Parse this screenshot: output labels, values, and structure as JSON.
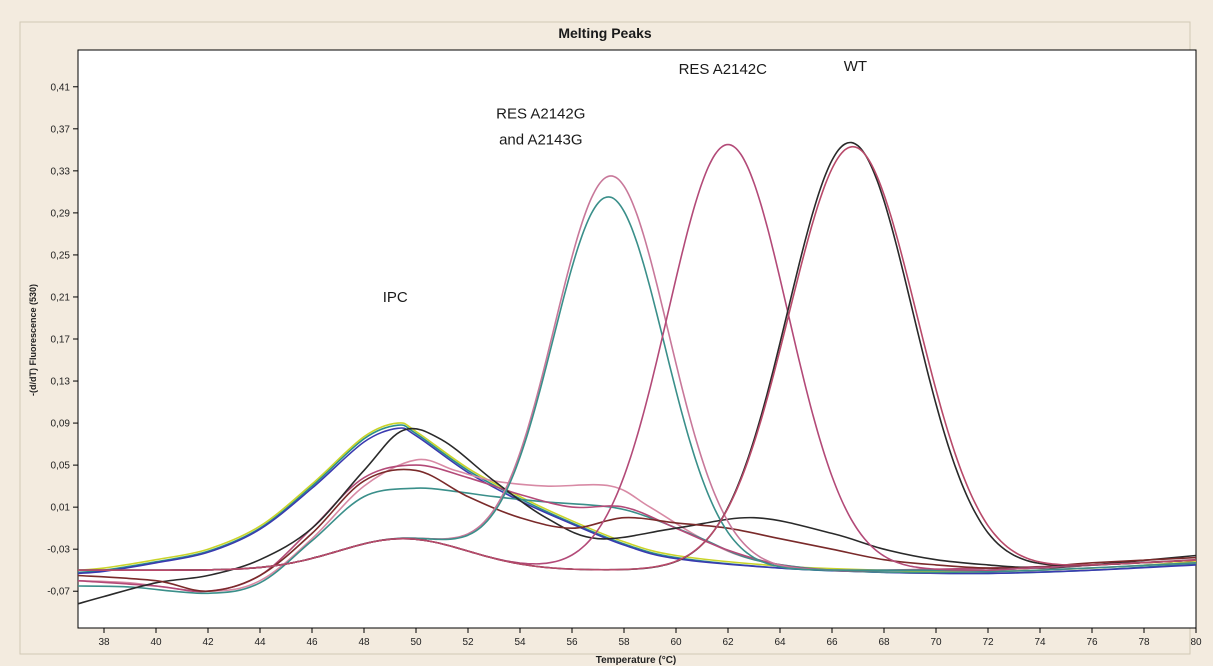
{
  "chart_data": {
    "type": "line",
    "title": "Melting Peaks",
    "xlabel": "Temperature (°C)",
    "ylabel": "-(d/dT) Fluorescence (530)",
    "xlim": [
      37,
      80
    ],
    "ylim": [
      -0.105,
      0.445
    ],
    "xticks": [
      38,
      40,
      42,
      44,
      46,
      48,
      50,
      52,
      54,
      56,
      58,
      60,
      62,
      64,
      66,
      68,
      70,
      72,
      74,
      76,
      78,
      80
    ],
    "yticks": [
      -0.07,
      -0.03,
      0.01,
      0.05,
      0.09,
      0.13,
      0.17,
      0.21,
      0.25,
      0.29,
      0.33,
      0.37,
      0.41
    ],
    "ytick_labels": [
      "-0,07",
      "-0,03",
      "0,01",
      "0,05",
      "0,09",
      "0,13",
      "0,17",
      "0,21",
      "0,25",
      "0,29",
      "0,33",
      "0,37",
      "0,41"
    ],
    "grid": false,
    "annotations": [
      {
        "text": "IPC",
        "x": 49.2,
        "y": 0.205
      },
      {
        "text": "RES A2142G",
        "x": 54.8,
        "y": 0.38
      },
      {
        "text": "and A2143G",
        "x": 54.8,
        "y": 0.355
      },
      {
        "text": "RES A2142C",
        "x": 61.8,
        "y": 0.422
      },
      {
        "text": "WT",
        "x": 66.9,
        "y": 0.425
      }
    ],
    "series": [
      {
        "color": "#2a8f8a",
        "x": [
          37,
          38,
          40,
          42,
          44,
          46,
          48,
          49.3,
          50,
          52,
          54,
          56,
          58,
          60,
          64,
          68,
          72,
          76,
          80
        ],
        "y": [
          -0.052,
          -0.05,
          -0.042,
          -0.032,
          -0.01,
          0.03,
          0.075,
          0.088,
          0.08,
          0.045,
          0.018,
          -0.005,
          -0.025,
          -0.038,
          -0.048,
          -0.052,
          -0.053,
          -0.05,
          -0.044
        ]
      },
      {
        "color": "#c9d42a",
        "x": [
          37,
          38,
          40,
          42,
          44,
          46,
          48,
          49.3,
          50,
          52,
          54,
          56,
          58,
          60,
          64,
          68,
          72,
          76,
          80
        ],
        "y": [
          -0.05,
          -0.048,
          -0.04,
          -0.03,
          -0.008,
          0.032,
          0.077,
          0.09,
          0.082,
          0.047,
          0.02,
          -0.003,
          -0.023,
          -0.036,
          -0.046,
          -0.05,
          -0.051,
          -0.048,
          -0.042
        ]
      },
      {
        "color": "#3a3ab0",
        "x": [
          37,
          38,
          40,
          42,
          44,
          46,
          48,
          49.3,
          50,
          52,
          54,
          56,
          58,
          60,
          64,
          68,
          72,
          76,
          80
        ],
        "y": [
          -0.053,
          -0.051,
          -0.043,
          -0.033,
          -0.011,
          0.028,
          0.072,
          0.085,
          0.078,
          0.043,
          0.016,
          -0.006,
          -0.026,
          -0.039,
          -0.048,
          -0.052,
          -0.053,
          -0.05,
          -0.045
        ]
      },
      {
        "color": "#d88aa5",
        "x": [
          37,
          39,
          42,
          44,
          46,
          48,
          50,
          51.5,
          53,
          55,
          57.5,
          59,
          61,
          63,
          66,
          70,
          74,
          80
        ],
        "y": [
          -0.06,
          -0.062,
          -0.07,
          -0.06,
          -0.02,
          0.03,
          0.055,
          0.045,
          0.035,
          0.03,
          0.03,
          0.01,
          -0.02,
          -0.04,
          -0.05,
          -0.052,
          -0.05,
          -0.043
        ]
      },
      {
        "color": "#3a8f8a",
        "x": [
          37,
          39,
          42,
          44,
          46,
          48,
          50,
          51.5,
          53,
          55,
          57.5,
          59,
          61,
          63,
          66,
          70,
          74,
          80
        ],
        "y": [
          -0.065,
          -0.066,
          -0.072,
          -0.062,
          -0.022,
          0.02,
          0.028,
          0.025,
          0.02,
          0.015,
          0.01,
          0,
          -0.02,
          -0.04,
          -0.05,
          -0.052,
          -0.05,
          -0.043
        ]
      },
      {
        "color": "#b34a78",
        "x": [
          37,
          40,
          42,
          44,
          46,
          48,
          50,
          52,
          54,
          56,
          58,
          60,
          61.9,
          64,
          66,
          68,
          72,
          76,
          80
        ],
        "y": [
          -0.06,
          -0.065,
          -0.07,
          -0.055,
          -0.01,
          0.038,
          0.05,
          0.038,
          0.022,
          0.01,
          0.01,
          -0.01,
          -0.03,
          -0.045,
          -0.05,
          -0.05,
          -0.048,
          -0.045,
          -0.04
        ]
      },
      {
        "color": "#2a2a2a",
        "x": [
          37,
          38,
          40,
          42,
          44,
          46,
          48,
          49.5,
          51,
          53,
          55,
          57,
          60,
          63,
          66,
          68,
          70,
          72,
          74,
          76,
          80
        ],
        "y": [
          -0.082,
          -0.075,
          -0.062,
          -0.055,
          -0.04,
          -0.01,
          0.045,
          0.083,
          0.074,
          0.035,
          0.0,
          -0.02,
          -0.01,
          0.0,
          -0.015,
          -0.03,
          -0.04,
          -0.045,
          -0.048,
          -0.045,
          -0.036
        ]
      },
      {
        "color": "#7a2a2a",
        "x": [
          37,
          40,
          42,
          44,
          46,
          48,
          50,
          52,
          54,
          56,
          58,
          60,
          62,
          64,
          66,
          68,
          70,
          72,
          74,
          76,
          80
        ],
        "y": [
          -0.055,
          -0.06,
          -0.07,
          -0.055,
          -0.015,
          0.035,
          0.045,
          0.02,
          0.0,
          -0.01,
          0.0,
          -0.005,
          -0.01,
          -0.02,
          -0.03,
          -0.04,
          -0.045,
          -0.048,
          -0.047,
          -0.043,
          -0.038
        ]
      }
    ]
  }
}
